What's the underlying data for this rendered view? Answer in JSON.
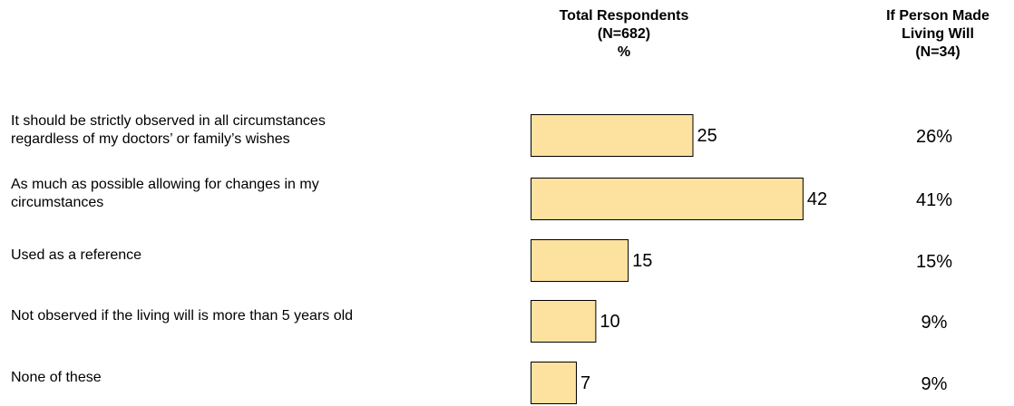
{
  "chart_data": {
    "type": "bar",
    "orientation": "horizontal",
    "columns": {
      "total": [
        "Total Respondents",
        "(N=682)",
        "%"
      ],
      "will": [
        "If Person Made",
        "Living Will",
        "(N=34)"
      ]
    },
    "categories": [
      [
        "It should be strictly observed in all circumstances",
        "regardless of my doctors’ or family’s wishes"
      ],
      [
        "As much as possible allowing for changes in my",
        "circumstances"
      ],
      [
        "Used as a reference"
      ],
      [
        "Not observed if the living will is more than 5 years old"
      ],
      [
        "None of these"
      ]
    ],
    "values": [
      25,
      42,
      15,
      10,
      7
    ],
    "value_labels": [
      "25",
      "42",
      "15",
      "10",
      "7"
    ],
    "living_will_values": [
      "26%",
      "41%",
      "15%",
      "9%",
      "9%"
    ],
    "bar_color": "#FDE19F",
    "bar_border_color": "#000000",
    "grid": false
  }
}
